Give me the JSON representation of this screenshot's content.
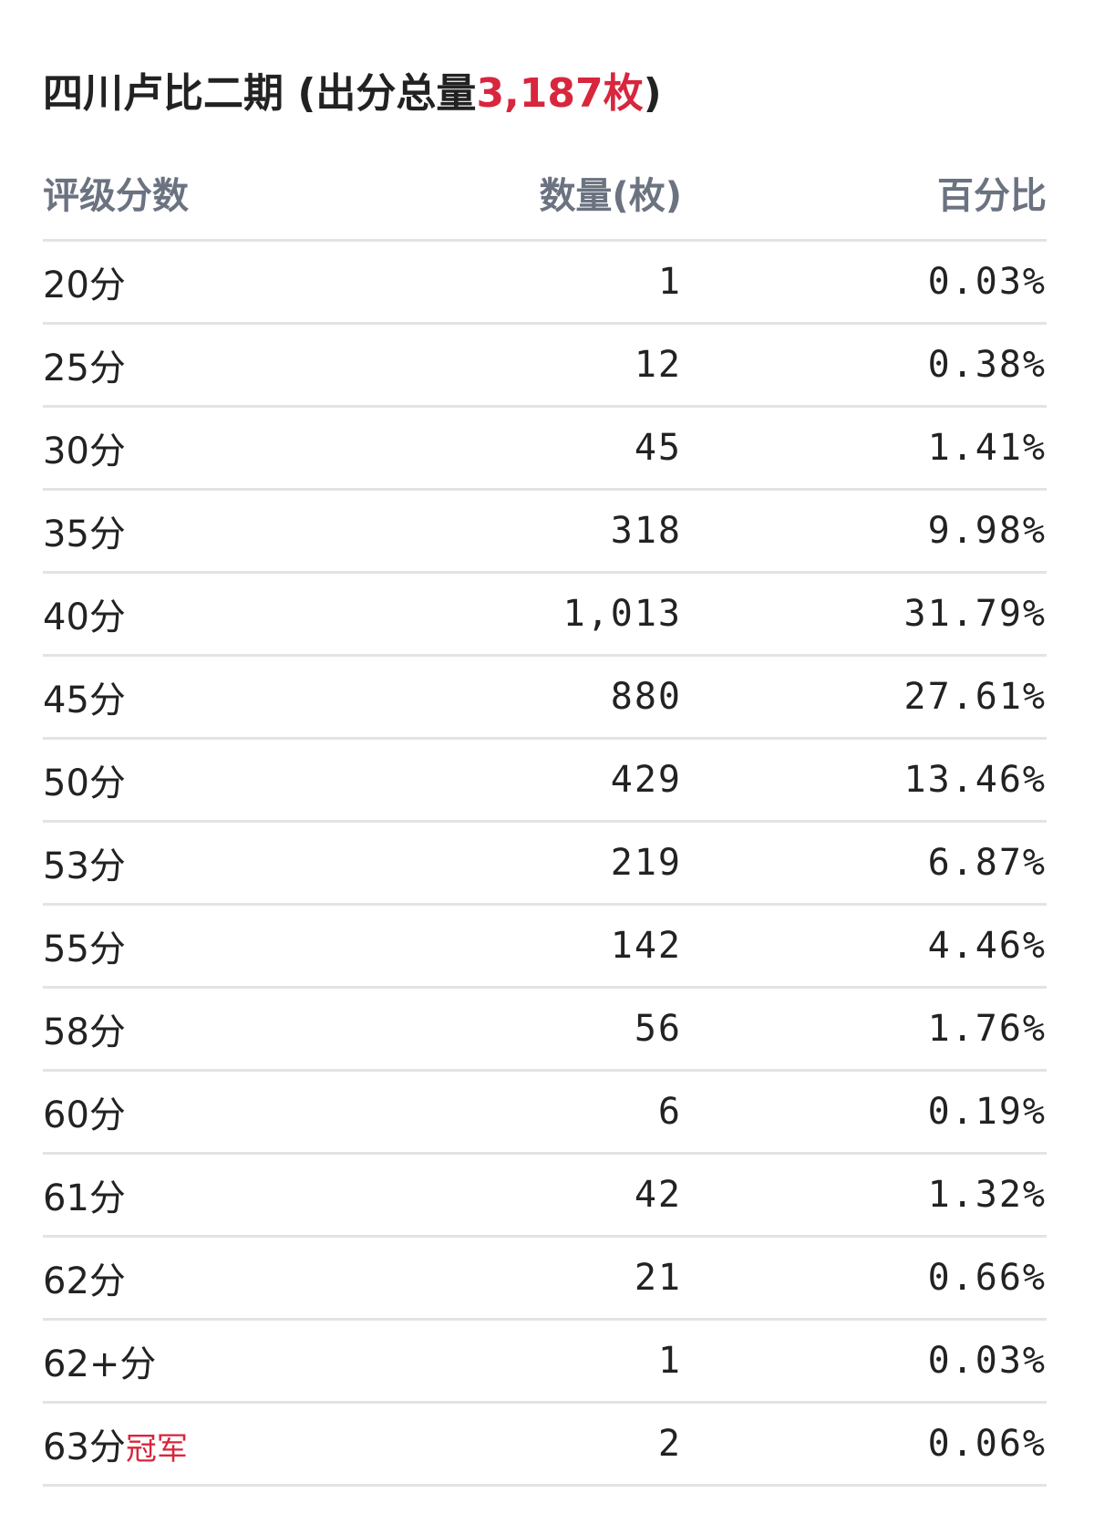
{
  "title": {
    "prefix": "四川卢比二期 (出分总量",
    "highlight": "3,187枚",
    "suffix": ")"
  },
  "table": {
    "headers": [
      "评级分数",
      "数量(枚)",
      "百分比"
    ],
    "rows": [
      {
        "score": "20分",
        "count": "1",
        "percent": "0.03%"
      },
      {
        "score": "25分",
        "count": "12",
        "percent": "0.38%"
      },
      {
        "score": "30分",
        "count": "45",
        "percent": "1.41%"
      },
      {
        "score": "35分",
        "count": "318",
        "percent": "9.98%"
      },
      {
        "score": "40分",
        "count": "1,013",
        "percent": "31.79%"
      },
      {
        "score": "45分",
        "count": "880",
        "percent": "27.61%"
      },
      {
        "score": "50分",
        "count": "429",
        "percent": "13.46%"
      },
      {
        "score": "53分",
        "count": "219",
        "percent": "6.87%"
      },
      {
        "score": "55分",
        "count": "142",
        "percent": "4.46%"
      },
      {
        "score": "58分",
        "count": "56",
        "percent": "1.76%"
      },
      {
        "score": "60分",
        "count": "6",
        "percent": "0.19%"
      },
      {
        "score": "61分",
        "count": "42",
        "percent": "1.32%"
      },
      {
        "score": "62分",
        "count": "21",
        "percent": "0.66%"
      },
      {
        "score": "62+分",
        "count": "1",
        "percent": "0.03%"
      },
      {
        "score": "63分",
        "tag": "冠军",
        "count": "2",
        "percent": "0.06%"
      }
    ]
  }
}
